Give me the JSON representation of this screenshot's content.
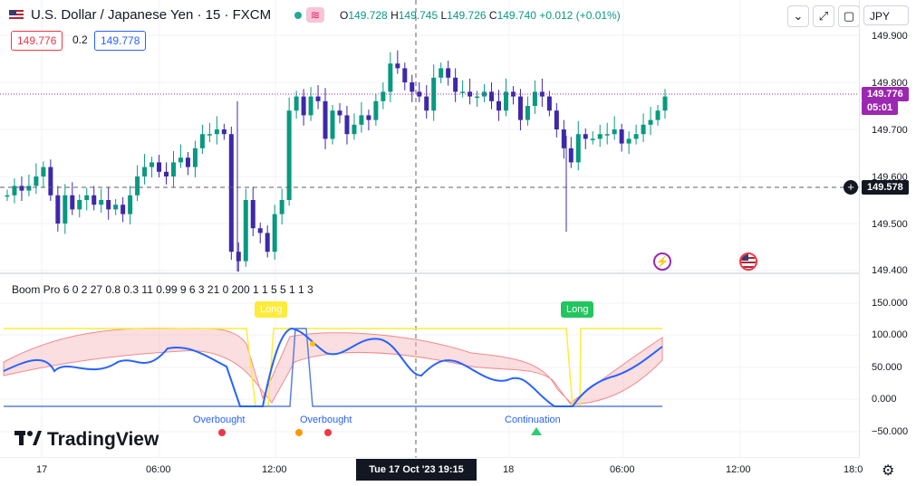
{
  "header": {
    "title": "U.S. Dollar / Japanese Yen · 15 · FXCM",
    "ohlc": {
      "o_label": "O",
      "o": "149.728",
      "h_label": "H",
      "h": "149.745",
      "l_label": "L",
      "l": "149.726",
      "c_label": "C",
      "c": "149.740",
      "change": "+0.012 (+0.01%)"
    },
    "bid": "149.776",
    "spread": "0.2",
    "ask": "149.778",
    "currency": "JPY"
  },
  "price_axis": {
    "ticks": [
      "149.900",
      "149.800",
      "149.700",
      "149.600",
      "149.500",
      "149.400"
    ],
    "current_price": "149.776",
    "countdown": "05:01",
    "crosshair_price": "149.578"
  },
  "indicator": {
    "name": "Boom Pro 6 0 2 27 0.8 0.3 11 0.99 9 6 3 21 0 200 1 1 5 5 1 1 3",
    "ticks": [
      "150.000",
      "100.000",
      "50.000",
      "0.000",
      "−50.000"
    ],
    "signals": [
      {
        "text": "Overbought"
      },
      {
        "text": "Overbought"
      },
      {
        "text": "Continuation"
      }
    ],
    "long_tags": [
      "Long",
      "Long"
    ]
  },
  "time_axis": {
    "ticks": [
      "17",
      "06:00",
      "12:00",
      "18",
      "06:00",
      "12:00",
      "18:0"
    ],
    "crosshair_time": "Tue 17 Oct '23   19:15"
  },
  "brand": "TradingView",
  "colors": {
    "up": "#089981",
    "candle": "#3f28a8",
    "accent": "#9c27b0",
    "fast": "#2962ff",
    "band": "#f6b6b8",
    "gate": "#ffeb3b"
  },
  "icons": {
    "collapse": "chevron-down-icon",
    "fullscreen": "expand-icon",
    "screenshot": "camera-icon",
    "settings": "gear-icon",
    "event1": "lightning-icon",
    "event2": "us-flag-icon"
  },
  "chart_data": {
    "type": "candlestick",
    "interval": "15",
    "ylim": [
      149.4,
      149.9
    ],
    "close_path": [
      149.56,
      149.58,
      149.57,
      149.58,
      149.6,
      149.62,
      149.56,
      149.5,
      149.56,
      149.53,
      149.55,
      149.56,
      149.54,
      149.55,
      149.53,
      149.54,
      149.52,
      149.56,
      149.6,
      149.62,
      149.63,
      149.61,
      149.6,
      149.63,
      149.64,
      149.62,
      149.66,
      149.69,
      149.69,
      149.7,
      149.69,
      149.44,
      149.42,
      149.55,
      149.49,
      149.48,
      149.44,
      149.52,
      149.55,
      149.74,
      149.77,
      149.73,
      149.77,
      149.76,
      149.68,
      149.74,
      149.73,
      149.69,
      149.71,
      149.73,
      149.72,
      149.76,
      149.78,
      149.84,
      149.83,
      149.8,
      149.78,
      149.77,
      149.74,
      149.81,
      149.83,
      149.81,
      149.78,
      149.78,
      149.77,
      149.77,
      149.78,
      149.76,
      149.74,
      149.78,
      149.77,
      149.72,
      149.75,
      149.78,
      149.77,
      149.74,
      149.7,
      149.66,
      149.63,
      149.69,
      149.68,
      149.68,
      149.69,
      149.69,
      149.7,
      149.67,
      149.68,
      149.69,
      149.71,
      149.72,
      149.74,
      149.77
    ]
  }
}
